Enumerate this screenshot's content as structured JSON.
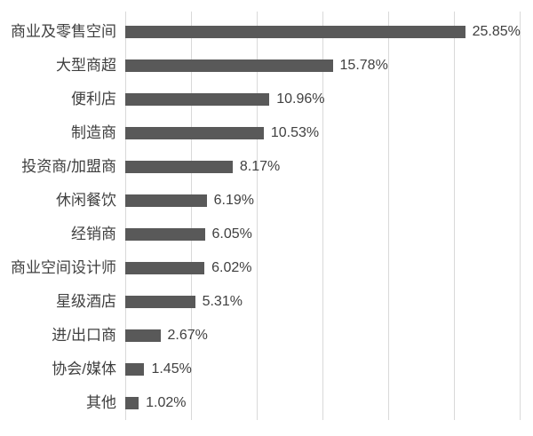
{
  "chart_data": {
    "type": "bar",
    "orientation": "horizontal",
    "title": "",
    "xlabel": "",
    "ylabel": "",
    "categories": [
      "商业及零售空间",
      "大型商超",
      "便利店",
      "制造商",
      "投资商/加盟商",
      "休闲餐饮",
      "经销商",
      "商业空间设计师",
      "星级酒店",
      "进/出口商",
      "协会/媒体",
      "其他"
    ],
    "values": [
      25.85,
      15.78,
      10.96,
      10.53,
      8.17,
      6.19,
      6.05,
      6.02,
      5.31,
      2.67,
      1.45,
      1.02
    ],
    "value_labels": [
      "25.85%",
      "15.78%",
      "10.96%",
      "10.53%",
      "8.17%",
      "6.19%",
      "6.05%",
      "6.02%",
      "5.31%",
      "2.67%",
      "1.45%",
      "1.02%"
    ],
    "xlim": [
      0,
      30
    ],
    "gridline_step": 5,
    "grid": "vertical-only",
    "legend": "none",
    "axis_tick_labels": "none",
    "colors": {
      "bar": "#595959",
      "text": "#404040",
      "gridline": "#d9d9d9",
      "background": "#ffffff"
    }
  }
}
